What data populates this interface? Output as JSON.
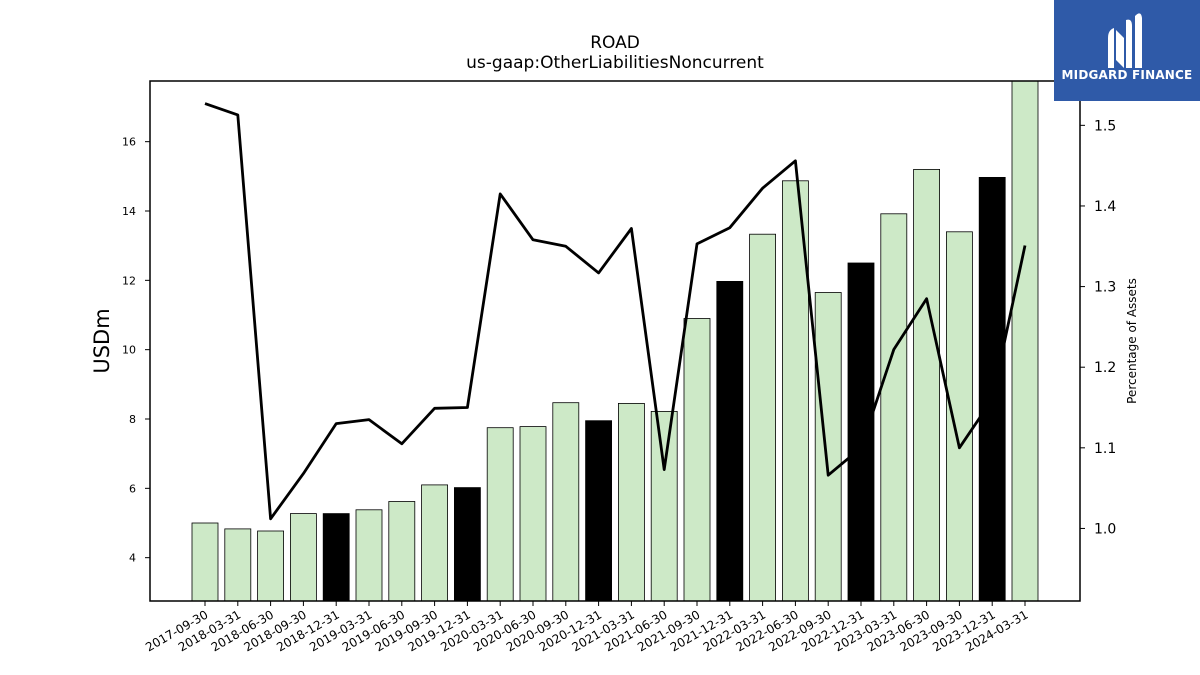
{
  "chart_data": {
    "type": "bar",
    "title": "ROAD",
    "subtitle": "us-gaap:OtherLiabilitiesNoncurrent",
    "ylabel": "USDm",
    "y2label": "Percentage of Assets",
    "ylim": [
      2.75,
      17.75
    ],
    "y2lim": [
      0.91,
      1.555
    ],
    "yticks": [
      4,
      6,
      8,
      10,
      12,
      14,
      16
    ],
    "y2ticks": [
      1.0,
      1.1,
      1.2,
      1.3,
      1.4,
      1.5
    ],
    "grid": false,
    "categories": [
      "2017-09-30",
      "2018-03-31",
      "2018-06-30",
      "2018-09-30",
      "2018-12-31",
      "2019-03-31",
      "2019-06-30",
      "2019-09-30",
      "2019-12-31",
      "2020-03-31",
      "2020-06-30",
      "2020-09-30",
      "2020-12-31",
      "2021-03-31",
      "2021-06-30",
      "2021-09-30",
      "2021-12-31",
      "2022-03-31",
      "2022-06-30",
      "2022-09-30",
      "2022-12-31",
      "2023-03-31",
      "2023-06-30",
      "2023-09-30",
      "2023-12-31",
      "2024-03-31"
    ],
    "series": [
      {
        "type": "bar",
        "values": [
          5.0,
          4.83,
          4.77,
          5.27,
          5.27,
          5.38,
          5.62,
          6.1,
          6.02,
          7.75,
          7.78,
          8.47,
          7.95,
          8.45,
          8.22,
          10.9,
          11.97,
          13.33,
          14.87,
          11.65,
          12.5,
          13.92,
          15.2,
          13.4,
          14.97,
          17.75
        ],
        "highlight": [
          false,
          false,
          false,
          false,
          true,
          false,
          false,
          false,
          true,
          false,
          false,
          false,
          true,
          false,
          false,
          false,
          true,
          false,
          false,
          false,
          true,
          false,
          false,
          false,
          true,
          false
        ],
        "color": "#cde9c7",
        "highlight_color": "#000000"
      },
      {
        "type": "line",
        "axis": "right",
        "values": [
          1.527,
          1.513,
          1.012,
          1.068,
          1.13,
          1.135,
          1.105,
          1.149,
          1.15,
          1.415,
          1.358,
          1.35,
          1.317,
          1.372,
          1.073,
          1.353,
          1.373,
          1.422,
          1.456,
          1.066,
          1.1,
          1.222,
          1.285,
          1.1,
          1.16,
          1.351
        ],
        "color": "#000000"
      }
    ]
  },
  "logo": {
    "text": "MIDGARD FINANCE"
  }
}
